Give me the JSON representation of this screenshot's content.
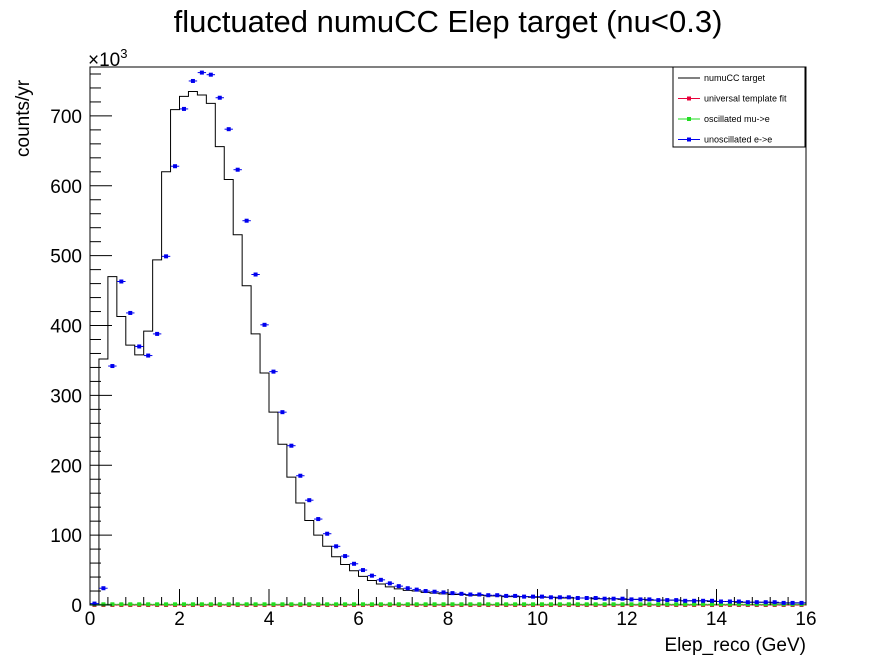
{
  "chart_data": {
    "type": "line",
    "title": "fluctuated numuCC Elep target (nu<0.3)",
    "xlabel": "Elep_reco (GeV)",
    "ylabel": "counts/yr",
    "y_exponent_label": "×10",
    "y_exponent_power": "3",
    "xlim": [
      0,
      16
    ],
    "ylim": [
      0,
      770
    ],
    "x_ticks": [
      "0",
      "2",
      "4",
      "6",
      "8",
      "10",
      "12",
      "14",
      "16"
    ],
    "y_ticks": [
      "0",
      "100",
      "200",
      "300",
      "400",
      "500",
      "600",
      "700"
    ],
    "bin_edges_start": 0,
    "bin_width": 0.2,
    "legend_position": "top-right",
    "series": [
      {
        "name": "numuCC target",
        "style": "histogram",
        "color": "#000000",
        "values": [
          1,
          352,
          470,
          413,
          372,
          358,
          392,
          494,
          620,
          709,
          728,
          735,
          730,
          718,
          656,
          609,
          530,
          457,
          388,
          332,
          276,
          230,
          183,
          146,
          121,
          100,
          84,
          69,
          58,
          49,
          41,
          35,
          30,
          26,
          23,
          21,
          20,
          18,
          17,
          16,
          15,
          15,
          14,
          14,
          13,
          13,
          12,
          12,
          12,
          11,
          11,
          11,
          10,
          10,
          10,
          10,
          9,
          9,
          9,
          8,
          8,
          8,
          7,
          7,
          7,
          7,
          6,
          6,
          6,
          5,
          5,
          5,
          4,
          4,
          4,
          4,
          3,
          3,
          3,
          3
        ]
      },
      {
        "name": "universal template fit",
        "style": "markers",
        "color": "#e8003a",
        "values": [
          0,
          0,
          0,
          0,
          0,
          0,
          0,
          0,
          0,
          0,
          0,
          0,
          0,
          0,
          0,
          0,
          0,
          0,
          0,
          0,
          0,
          0,
          0,
          0,
          0,
          0,
          0,
          0,
          0,
          0,
          0,
          0,
          0,
          0,
          0,
          0,
          0,
          0,
          0,
          0,
          0,
          0,
          0,
          0,
          0,
          0,
          0,
          0,
          0,
          0,
          0,
          0,
          0,
          0,
          0,
          0,
          0,
          0,
          0,
          0,
          0,
          0,
          0,
          0,
          0,
          0,
          0,
          0,
          0,
          0,
          0,
          0,
          0,
          0,
          0,
          0,
          0,
          0,
          0,
          0
        ]
      },
      {
        "name": "oscillated mu->e",
        "style": "markers",
        "color": "#22dd22",
        "values": [
          1,
          1,
          1,
          1,
          1,
          1,
          1,
          1,
          1,
          1,
          1,
          1,
          1,
          1,
          1,
          1,
          1,
          1,
          1,
          1,
          1,
          1,
          1,
          1,
          1,
          1,
          1,
          1,
          1,
          1,
          1,
          1,
          1,
          1,
          1,
          1,
          1,
          1,
          1,
          1,
          1,
          1,
          1,
          1,
          1,
          1,
          1,
          1,
          1,
          1,
          1,
          1,
          1,
          1,
          1,
          1,
          1,
          1,
          1,
          1,
          1,
          1,
          1,
          1,
          1,
          1,
          1,
          1,
          1,
          1,
          1,
          1,
          1,
          1,
          1,
          1,
          1,
          1,
          1,
          1
        ]
      },
      {
        "name": "unoscillated e->e",
        "style": "markers",
        "color": "#0000ee",
        "values": [
          2,
          24,
          342,
          463,
          418,
          370,
          357,
          388,
          499,
          628,
          710,
          750,
          762,
          759,
          726,
          681,
          623,
          550,
          473,
          401,
          334,
          276,
          228,
          185,
          150,
          123,
          102,
          84,
          70,
          59,
          50,
          42,
          36,
          31,
          27,
          24,
          22,
          20,
          19,
          18,
          17,
          16,
          15,
          15,
          14,
          14,
          13,
          13,
          12,
          12,
          12,
          11,
          11,
          11,
          10,
          10,
          10,
          9,
          9,
          9,
          8,
          8,
          8,
          7,
          7,
          7,
          6,
          6,
          6,
          6,
          5,
          5,
          5,
          4,
          4,
          4,
          4,
          3,
          3,
          3
        ]
      }
    ]
  }
}
